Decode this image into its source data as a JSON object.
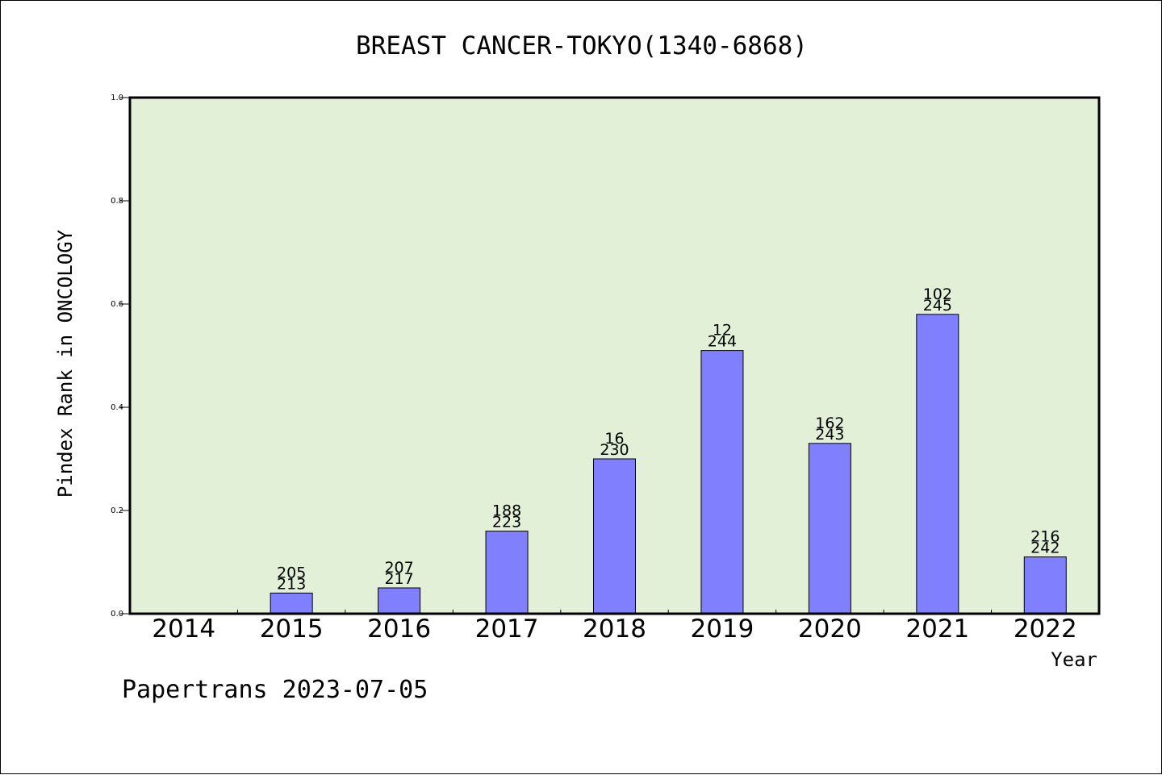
{
  "chart_data": {
    "type": "bar",
    "title": "BREAST CANCER-TOKYO(1340-6868)",
    "xlabel": "Year",
    "ylabel": "Pindex Rank in ONCOLOGY",
    "categories": [
      "2014",
      "2015",
      "2016",
      "2017",
      "2018",
      "2019",
      "2020",
      "2021",
      "2022"
    ],
    "values": [
      0,
      0.04,
      0.05,
      0.16,
      0.3,
      0.51,
      0.33,
      0.58,
      0.11
    ],
    "label_top": [
      "",
      "205",
      "207",
      "188",
      "16",
      "12",
      "162",
      "102",
      "216"
    ],
    "label_bottom": [
      "",
      "213",
      "217",
      "223",
      "230",
      "244",
      "243",
      "245",
      "242"
    ],
    "ylim": [
      0,
      1.0
    ],
    "yticks": [
      "0.0",
      "0.2",
      "0.4",
      "0.6",
      "0.8",
      "1.0"
    ],
    "grid": false,
    "colors": {
      "plot_background": "#e2f0d7",
      "bar_fill": "#8080ff",
      "bar_stroke": "#000000"
    }
  },
  "footer": "Papertrans 2023-07-05"
}
